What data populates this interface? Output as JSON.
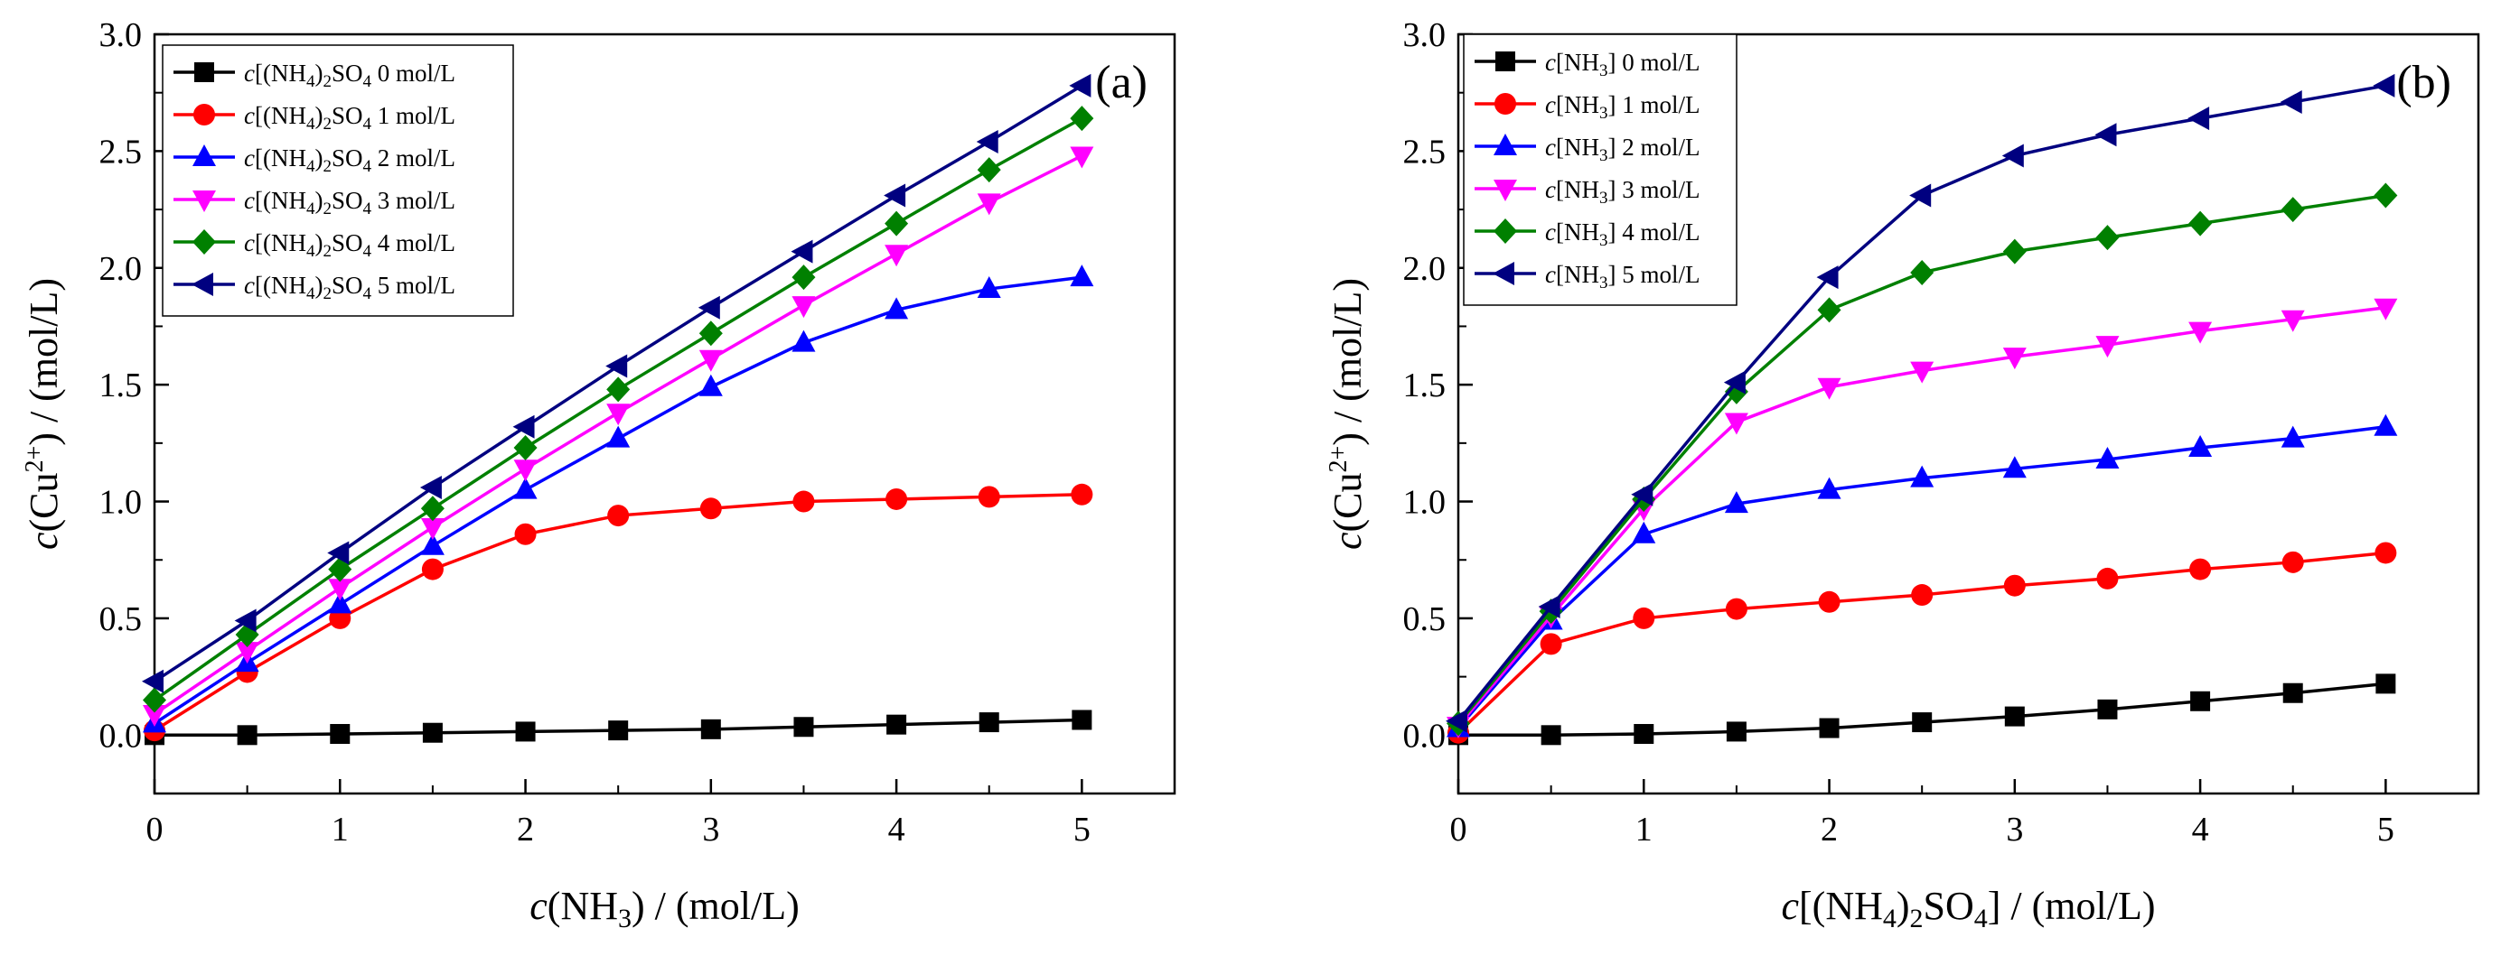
{
  "chart_data": [
    {
      "type": "line",
      "panel_label": "(a)",
      "x": [
        0,
        0.5,
        1,
        1.5,
        2,
        2.5,
        3,
        3.5,
        4,
        4.5,
        5
      ],
      "xlim": [
        0,
        5.5
      ],
      "ylim": [
        -0.25,
        3.0
      ],
      "xticks": [
        "0",
        "1",
        "2",
        "3",
        "4",
        "5"
      ],
      "yticks": [
        "0.0",
        "0.5",
        "1.0",
        "1.5",
        "2.0",
        "2.5",
        "3.0"
      ],
      "xlabel": {
        "pre": "c",
        "main": "(NH",
        "sub": "3",
        "post": ") / (mol/L)"
      },
      "ylabel": {
        "pre": "c",
        "main": "(Cu",
        "sup": "2+",
        "post": ") / (mol/L)"
      },
      "legend_position": "top-left",
      "legend": {
        "prefix": "c",
        "species_a": "[(NH",
        "sub_a": "4",
        "species_b": ")",
        "sub_b": "2",
        "species_c": "SO",
        "sub_c": "4",
        "suffix_unit": "mol/L"
      },
      "series": [
        {
          "name": "c[(NH4)2SO4] 0 mol/L",
          "level": "0",
          "color": "#000000",
          "marker": "square",
          "values": [
            0.0,
            0.0,
            0.005,
            0.01,
            0.015,
            0.02,
            0.025,
            0.035,
            0.045,
            0.055,
            0.065
          ]
        },
        {
          "name": "c[(NH4)2SO4] 1 mol/L",
          "level": "1",
          "color": "#ff0000",
          "marker": "circle",
          "values": [
            0.02,
            0.27,
            0.5,
            0.71,
            0.86,
            0.94,
            0.97,
            1.0,
            1.01,
            1.02,
            1.03
          ]
        },
        {
          "name": "c[(NH4)2SO4] 2 mol/L",
          "level": "2",
          "color": "#0000ff",
          "marker": "triangle-up",
          "values": [
            0.05,
            0.31,
            0.56,
            0.81,
            1.05,
            1.27,
            1.49,
            1.68,
            1.82,
            1.91,
            1.96
          ]
        },
        {
          "name": "c[(NH4)2SO4] 3 mol/L",
          "level": "3",
          "color": "#ff00ff",
          "marker": "triangle-down",
          "values": [
            0.09,
            0.36,
            0.63,
            0.89,
            1.14,
            1.38,
            1.61,
            1.84,
            2.06,
            2.28,
            2.48
          ]
        },
        {
          "name": "c[(NH4)2SO4] 4 mol/L",
          "level": "4",
          "color": "#008000",
          "marker": "diamond",
          "values": [
            0.15,
            0.43,
            0.71,
            0.97,
            1.23,
            1.48,
            1.72,
            1.96,
            2.19,
            2.42,
            2.64
          ]
        },
        {
          "name": "c[(NH4)2SO4] 5 mol/L",
          "level": "5",
          "color": "#000080",
          "marker": "triangle-left",
          "values": [
            0.23,
            0.49,
            0.78,
            1.06,
            1.32,
            1.58,
            1.83,
            2.07,
            2.31,
            2.54,
            2.78
          ]
        }
      ]
    },
    {
      "type": "line",
      "panel_label": "(b)",
      "x": [
        0,
        0.5,
        1,
        1.5,
        2,
        2.5,
        3,
        3.5,
        4,
        4.5,
        5
      ],
      "xlim": [
        0,
        5.5
      ],
      "ylim": [
        -0.25,
        3.0
      ],
      "xticks": [
        "0",
        "1",
        "2",
        "3",
        "4",
        "5"
      ],
      "yticks": [
        "0.0",
        "0.5",
        "1.0",
        "1.5",
        "2.0",
        "2.5",
        "3.0"
      ],
      "xlabel": {
        "pre": "c",
        "main": "[(NH",
        "sub": "4",
        "mid": ")",
        "sub2": "2",
        "tail": "SO",
        "sub3": "4",
        "post": "] / (mol/L)"
      },
      "ylabel": {
        "pre": "c",
        "main": "(Cu",
        "sup": "2+",
        "post": ") / (mol/L)"
      },
      "legend_position": "top-left",
      "legend": {
        "prefix": "c",
        "species_a": "[NH",
        "sub_a": "3",
        "species_b": "]",
        "suffix_unit": "mol/L"
      },
      "series": [
        {
          "name": "c[NH3] 0 mol/L",
          "level": "0",
          "color": "#000000",
          "marker": "square",
          "values": [
            0.0,
            0.0,
            0.005,
            0.015,
            0.03,
            0.055,
            0.08,
            0.11,
            0.145,
            0.18,
            0.22
          ]
        },
        {
          "name": "c[NH3] 1 mol/L",
          "level": "1",
          "color": "#ff0000",
          "marker": "circle",
          "values": [
            0.01,
            0.39,
            0.5,
            0.54,
            0.57,
            0.6,
            0.64,
            0.67,
            0.71,
            0.74,
            0.78
          ]
        },
        {
          "name": "c[NH3] 2 mol/L",
          "level": "2",
          "color": "#0000ff",
          "marker": "triangle-up",
          "values": [
            0.03,
            0.49,
            0.86,
            0.99,
            1.05,
            1.1,
            1.14,
            1.18,
            1.23,
            1.27,
            1.32
          ]
        },
        {
          "name": "c[NH3] 3 mol/L",
          "level": "3",
          "color": "#ff00ff",
          "marker": "triangle-down",
          "values": [
            0.04,
            0.51,
            0.97,
            1.34,
            1.49,
            1.56,
            1.62,
            1.67,
            1.73,
            1.78,
            1.83
          ]
        },
        {
          "name": "c[NH3] 4 mol/L",
          "level": "4",
          "color": "#008000",
          "marker": "diamond",
          "values": [
            0.05,
            0.53,
            1.01,
            1.47,
            1.82,
            1.98,
            2.07,
            2.13,
            2.19,
            2.25,
            2.31
          ]
        },
        {
          "name": "c[NH3] 5 mol/L",
          "level": "5",
          "color": "#000080",
          "marker": "triangle-left",
          "values": [
            0.06,
            0.55,
            1.03,
            1.51,
            1.96,
            2.31,
            2.48,
            2.57,
            2.64,
            2.71,
            2.78
          ]
        }
      ]
    }
  ]
}
